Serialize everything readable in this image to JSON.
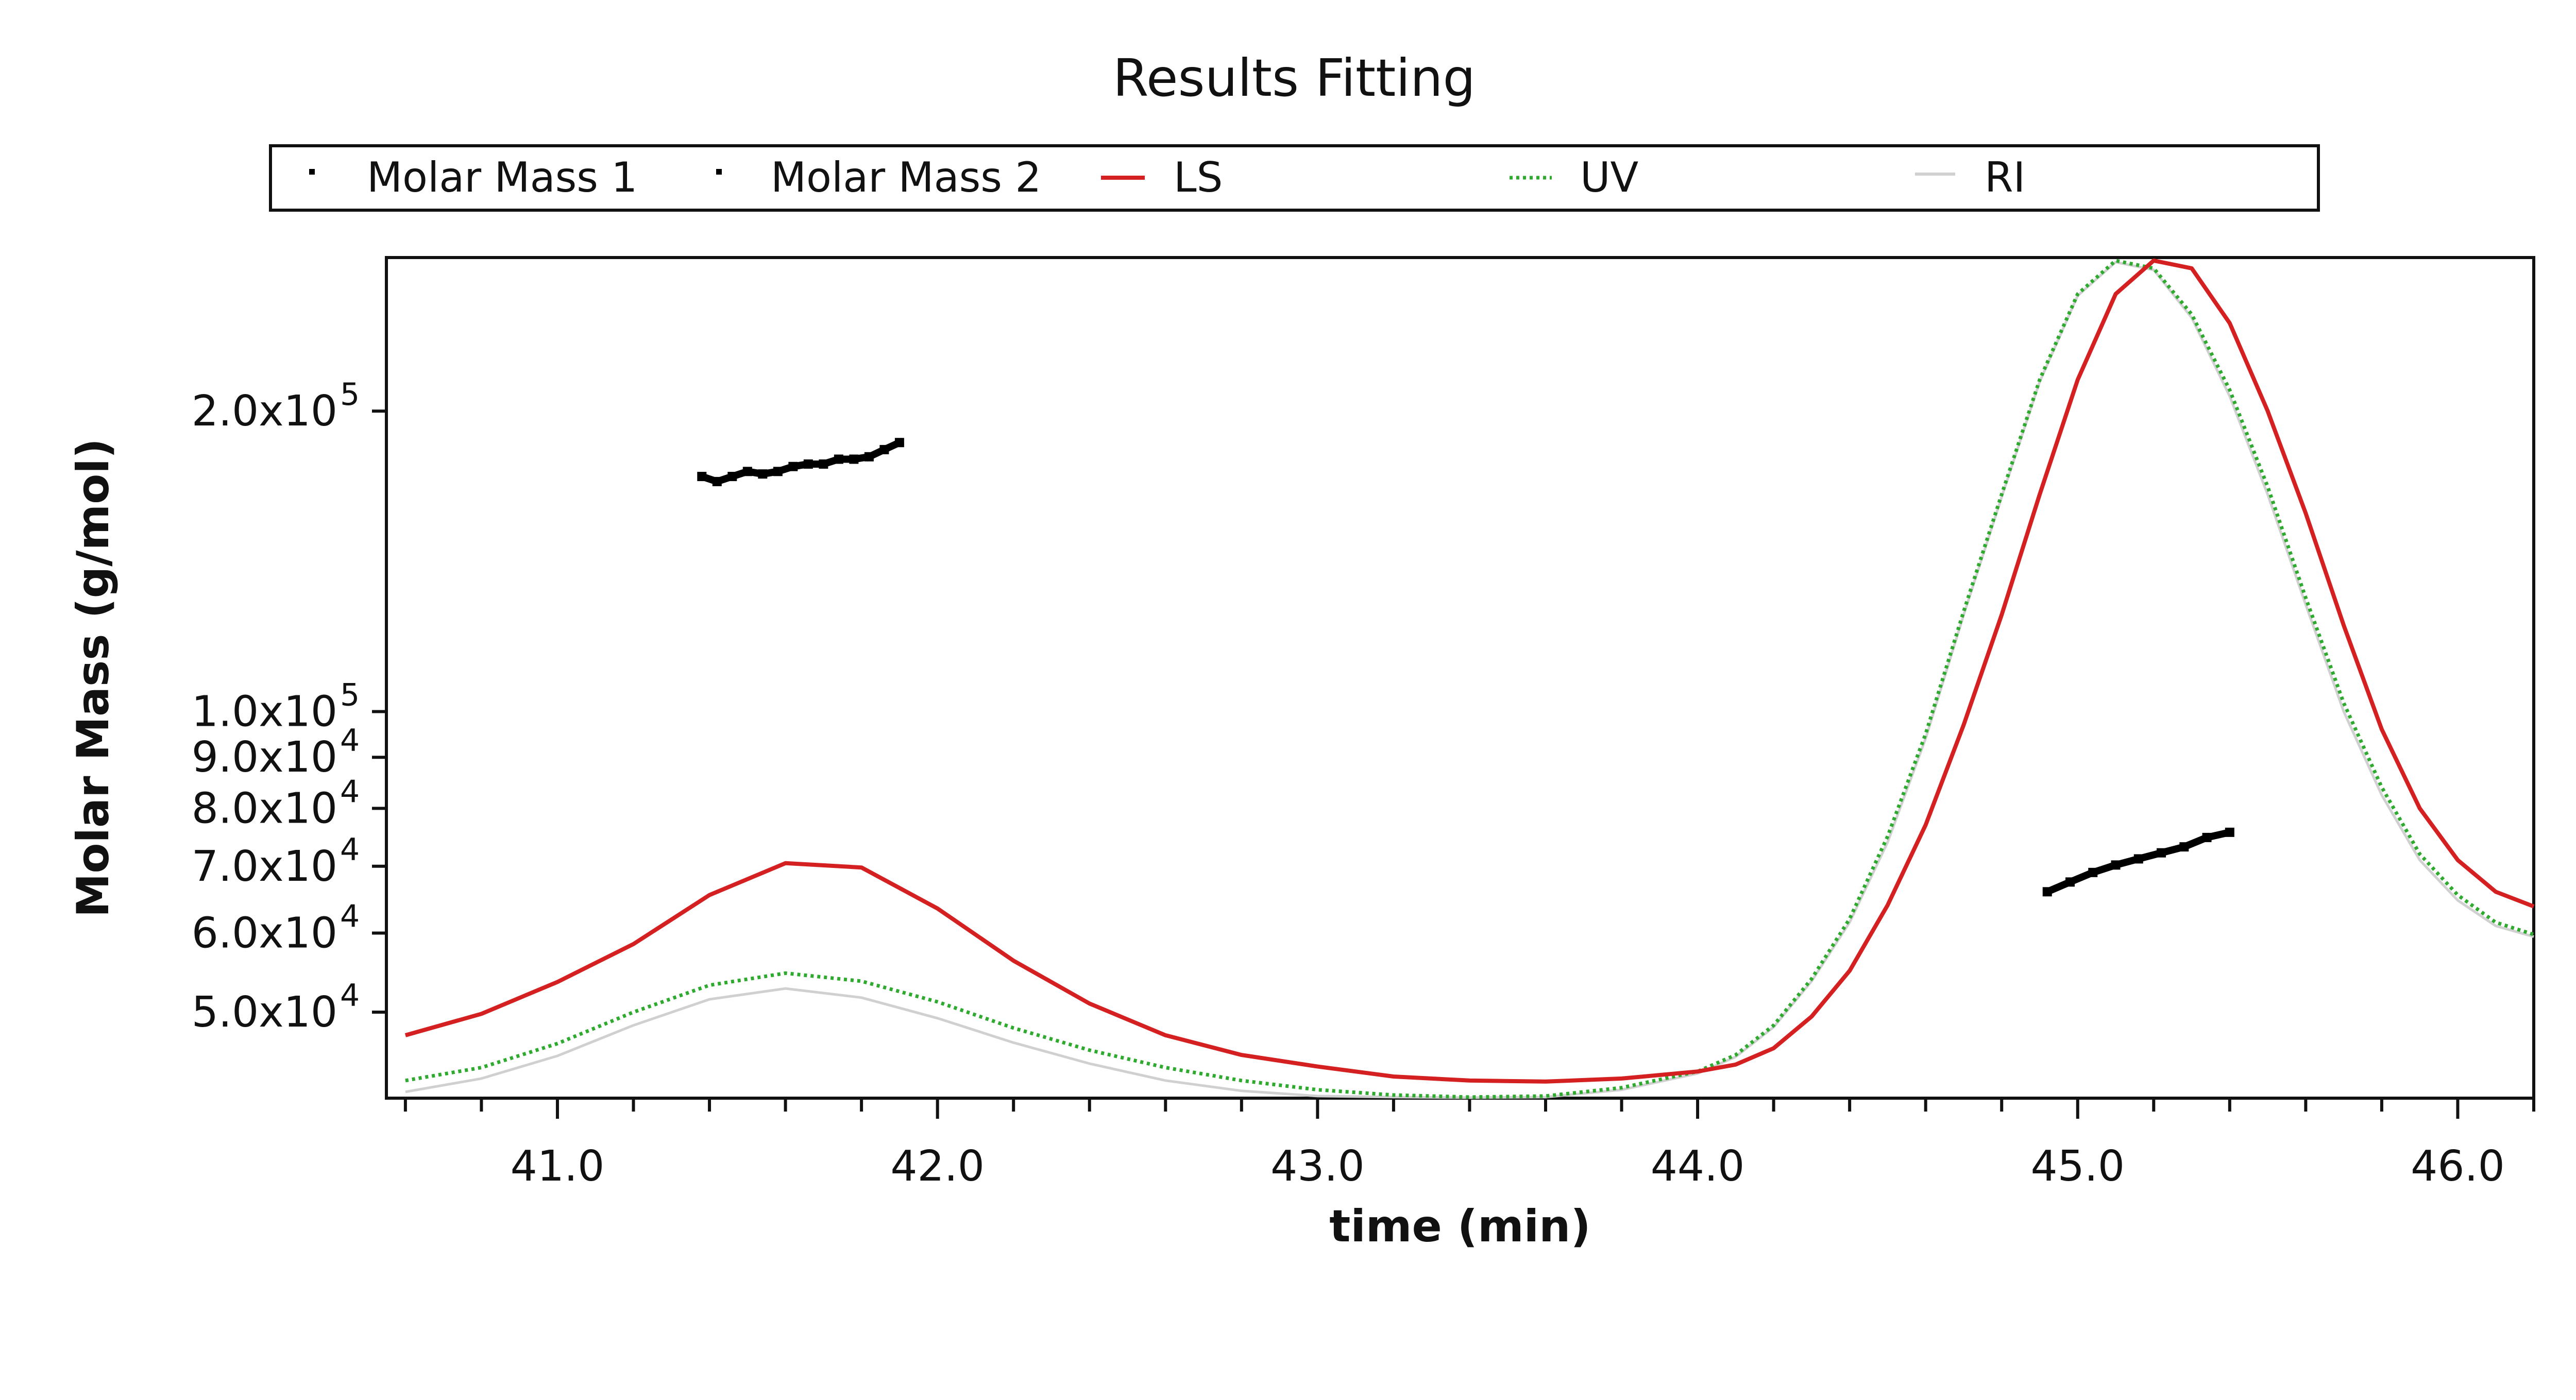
{
  "chart_data": {
    "type": "line",
    "title": "Results Fitting",
    "xlabel": "time (min)",
    "ylabel": "Molar Mass (g/mol)",
    "xlim": [
      40.55,
      46.2
    ],
    "ylim_log": [
      41000,
      285000
    ],
    "y_scale": "log",
    "grid": false,
    "legend_position": "top",
    "x_ticks": [
      {
        "value": 41.0,
        "label": "41.0"
      },
      {
        "value": 42.0,
        "label": "42.0"
      },
      {
        "value": 43.0,
        "label": "43.0"
      },
      {
        "value": 44.0,
        "label": "44.0"
      },
      {
        "value": 45.0,
        "label": "45.0"
      },
      {
        "value": 46.0,
        "label": "46.0"
      }
    ],
    "y_ticks": [
      {
        "value": 200000,
        "mantissa": "2.0x10",
        "exp": "5"
      },
      {
        "value": 100000,
        "mantissa": "1.0x10",
        "exp": "5"
      },
      {
        "value": 90000,
        "mantissa": "9.0x10",
        "exp": "4"
      },
      {
        "value": 80000,
        "mantissa": "8.0x10",
        "exp": "4"
      },
      {
        "value": 70000,
        "mantissa": "7.0x10",
        "exp": "4"
      },
      {
        "value": 60000,
        "mantissa": "6.0x10",
        "exp": "4"
      },
      {
        "value": 50000,
        "mantissa": "5.0x10",
        "exp": "4"
      }
    ],
    "series": [
      {
        "name": "Molar Mass 1",
        "style": "points",
        "color": "#000000",
        "x": [
          41.38,
          41.42,
          41.46,
          41.5,
          41.54,
          41.58,
          41.62,
          41.66,
          41.7,
          41.74,
          41.78,
          41.82,
          41.86,
          41.9
        ],
        "y": [
          172000,
          170000,
          172000,
          174000,
          173000,
          174000,
          176000,
          177000,
          177000,
          179000,
          179000,
          180000,
          183000,
          186000
        ]
      },
      {
        "name": "Molar Mass 2",
        "style": "points",
        "color": "#000000",
        "x": [
          44.92,
          44.98,
          45.04,
          45.1,
          45.16,
          45.22,
          45.28,
          45.34,
          45.4
        ],
        "y": [
          66000,
          67500,
          69000,
          70200,
          71200,
          72200,
          73200,
          74800,
          75700
        ]
      },
      {
        "name": "LS",
        "style": "solid",
        "color": "#d42020",
        "x": [
          40.6,
          40.8,
          41.0,
          41.2,
          41.4,
          41.6,
          41.8,
          42.0,
          42.2,
          42.4,
          42.6,
          42.8,
          43.0,
          43.2,
          43.4,
          43.6,
          43.8,
          44.0,
          44.1,
          44.2,
          44.3,
          44.4,
          44.5,
          44.6,
          44.7,
          44.8,
          44.9,
          45.0,
          45.1,
          45.2,
          45.3,
          45.4,
          45.5,
          45.6,
          45.7,
          45.8,
          45.9,
          46.0,
          46.1,
          46.2
        ],
        "y": [
          47400,
          49800,
          53600,
          58500,
          65500,
          70500,
          69800,
          63500,
          56300,
          51000,
          47400,
          45300,
          44100,
          43100,
          42700,
          42600,
          42900,
          43600,
          44300,
          46000,
          49500,
          55000,
          64000,
          77000,
          97000,
          125000,
          165000,
          215000,
          262000,
          283000,
          278000,
          245000,
          200000,
          158000,
          122000,
          96000,
          80000,
          71000,
          66000,
          63800
        ]
      },
      {
        "name": "UV",
        "style": "dotted",
        "color": "#2eaa2e",
        "x": [
          40.6,
          40.8,
          41.0,
          41.2,
          41.4,
          41.6,
          41.8,
          42.0,
          42.2,
          42.4,
          42.6,
          42.8,
          43.0,
          43.2,
          43.4,
          43.6,
          43.8,
          44.0,
          44.1,
          44.2,
          44.3,
          44.4,
          44.5,
          44.6,
          44.7,
          44.8,
          44.9,
          45.0,
          45.1,
          45.2,
          45.3,
          45.4,
          45.5,
          45.6,
          45.7,
          45.8,
          45.9,
          46.0,
          46.1,
          46.2
        ],
        "y": [
          42700,
          44000,
          46500,
          50000,
          53200,
          54700,
          53700,
          51200,
          48200,
          45800,
          44000,
          42700,
          41800,
          41300,
          41100,
          41200,
          42000,
          43600,
          45300,
          48500,
          54000,
          62000,
          75000,
          95000,
          126000,
          165000,
          215000,
          262000,
          283000,
          278000,
          250000,
          210000,
          168000,
          130000,
          102000,
          84000,
          72000,
          65500,
          61500,
          59800
        ]
      },
      {
        "name": "RI",
        "style": "solid",
        "color": "#d0d0d0",
        "x": [
          40.6,
          40.8,
          41.0,
          41.2,
          41.4,
          41.6,
          41.8,
          42.0,
          42.2,
          42.4,
          42.6,
          42.8,
          43.0,
          43.2,
          43.4,
          43.6,
          43.8,
          44.0,
          44.1,
          44.2,
          44.3,
          44.4,
          44.5,
          44.6,
          44.7,
          44.8,
          44.9,
          45.0,
          45.1,
          45.2,
          45.3,
          45.4,
          45.5,
          45.6,
          45.7,
          45.8,
          45.9,
          46.0,
          46.1,
          46.2
        ],
        "y": [
          41600,
          42900,
          45200,
          48500,
          51500,
          52800,
          51700,
          49300,
          46600,
          44400,
          42700,
          41700,
          41200,
          41100,
          41050,
          41100,
          41800,
          43400,
          45100,
          48300,
          53700,
          61500,
          74000,
          94000,
          125000,
          164000,
          214000,
          261000,
          282000,
          277000,
          248000,
          207000,
          165000,
          128000,
          100000,
          82500,
          71000,
          64700,
          61000,
          59500
        ]
      }
    ]
  }
}
